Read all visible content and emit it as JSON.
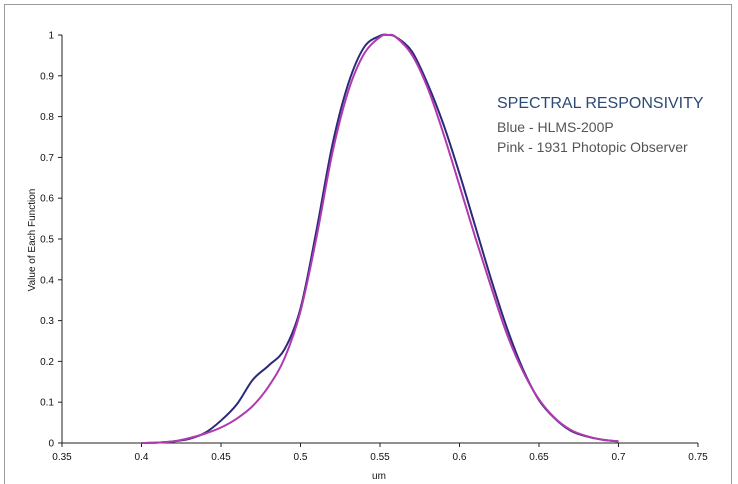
{
  "chart_data": {
    "type": "line",
    "title": "",
    "xlabel": "um",
    "ylabel": "Value of Each Function",
    "xlim": [
      0.35,
      0.75
    ],
    "ylim": [
      0,
      1
    ],
    "xticks": [
      "0.35",
      "0.4",
      "0.45",
      "0.5",
      "0.55",
      "0.6",
      "0.65",
      "0.7",
      "0.75"
    ],
    "yticks": [
      "0",
      "0.1",
      "0.2",
      "0.3",
      "0.4",
      "0.5",
      "0.6",
      "0.7",
      "0.8",
      "0.9",
      "1"
    ],
    "grid": false,
    "annotation": {
      "title": "SPECTRAL RESPONSIVITY",
      "lines": [
        "Blue - HLMS-200P",
        "Pink - 1931 Photopic Observer"
      ]
    },
    "colors": {
      "blue": "#2a2a7a",
      "pink": "#b03ab0",
      "title": "#2c4a78"
    },
    "series": [
      {
        "color": "#2a2a7a",
        "x": [
          0.4,
          0.41,
          0.42,
          0.43,
          0.44,
          0.45,
          0.46,
          0.47,
          0.48,
          0.49,
          0.5,
          0.51,
          0.52,
          0.53,
          0.54,
          0.55,
          0.555,
          0.56,
          0.57,
          0.58,
          0.59,
          0.6,
          0.61,
          0.62,
          0.63,
          0.64,
          0.65,
          0.66,
          0.67,
          0.68,
          0.69,
          0.7
        ],
        "y": [
          0.0,
          0.001,
          0.004,
          0.01,
          0.025,
          0.055,
          0.095,
          0.155,
          0.19,
          0.23,
          0.33,
          0.52,
          0.73,
          0.88,
          0.97,
          0.998,
          1.0,
          0.995,
          0.96,
          0.88,
          0.78,
          0.66,
          0.53,
          0.4,
          0.28,
          0.18,
          0.105,
          0.06,
          0.03,
          0.016,
          0.008,
          0.004
        ]
      },
      {
        "color": "#b03ab0",
        "x": [
          0.4,
          0.41,
          0.42,
          0.43,
          0.44,
          0.45,
          0.46,
          0.47,
          0.48,
          0.49,
          0.5,
          0.51,
          0.52,
          0.53,
          0.54,
          0.55,
          0.555,
          0.56,
          0.57,
          0.58,
          0.59,
          0.6,
          0.61,
          0.62,
          0.63,
          0.64,
          0.65,
          0.66,
          0.67,
          0.68,
          0.69,
          0.7
        ],
        "y": [
          0.0,
          0.001,
          0.004,
          0.012,
          0.023,
          0.038,
          0.06,
          0.091,
          0.139,
          0.208,
          0.323,
          0.503,
          0.71,
          0.862,
          0.954,
          0.995,
          1.0,
          0.995,
          0.952,
          0.87,
          0.757,
          0.631,
          0.503,
          0.381,
          0.265,
          0.175,
          0.107,
          0.061,
          0.032,
          0.017,
          0.008,
          0.004
        ]
      }
    ]
  }
}
